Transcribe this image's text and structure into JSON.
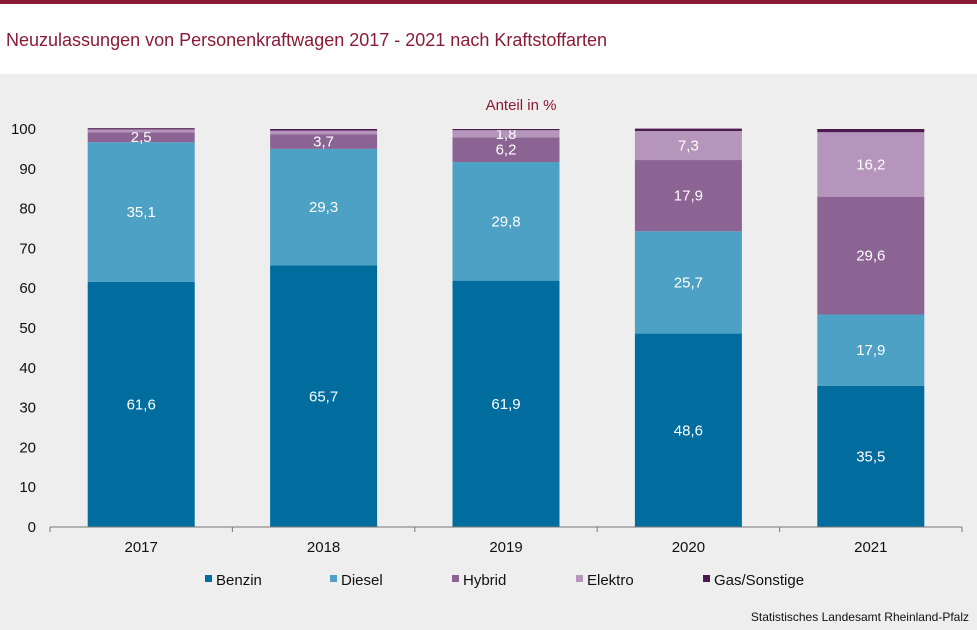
{
  "title": "Neuzulassungen von Personenkraftwagen 2017 - 2021 nach Kraftstoffarten",
  "source": "Statistisches Landesamt Rheinland-Pfalz",
  "chart_data": {
    "type": "bar",
    "stacked": true,
    "unit_label": "Anteil in %",
    "categories": [
      "2017",
      "2018",
      "2019",
      "2020",
      "2021"
    ],
    "series": [
      {
        "name": "Benzin",
        "color": "#006d9e",
        "values": [
          61.6,
          65.7,
          61.9,
          48.6,
          35.5
        ],
        "labels": [
          "61,6",
          "65,7",
          "61,9",
          "48,6",
          "35,5"
        ]
      },
      {
        "name": "Diesel",
        "color": "#4da1c4",
        "values": [
          35.1,
          29.3,
          29.8,
          25.7,
          17.9
        ],
        "labels": [
          "35,1",
          "29,3",
          "29,8",
          "25,7",
          "17,9"
        ]
      },
      {
        "name": "Hybrid",
        "color": "#8b6494",
        "values": [
          2.5,
          3.7,
          6.2,
          17.9,
          29.6
        ],
        "labels": [
          "2,5",
          "3,7",
          "6,2",
          "17,9",
          "29,6"
        ]
      },
      {
        "name": "Elektro",
        "color": "#b595bb",
        "values": [
          0.7,
          0.9,
          1.8,
          7.3,
          16.2
        ],
        "labels": [
          "",
          "",
          "1,8",
          "7,3",
          "16,2"
        ]
      },
      {
        "name": "Gas/Sonstige",
        "color": "#4d1a50",
        "values": [
          0.3,
          0.4,
          0.3,
          0.6,
          0.8
        ],
        "labels": [
          "",
          "",
          "",
          "",
          ""
        ]
      }
    ],
    "ylim": [
      0,
      100
    ],
    "yticks": [
      0,
      10,
      20,
      30,
      40,
      50,
      60,
      70,
      80,
      90,
      100
    ],
    "legend_position": "bottom"
  }
}
